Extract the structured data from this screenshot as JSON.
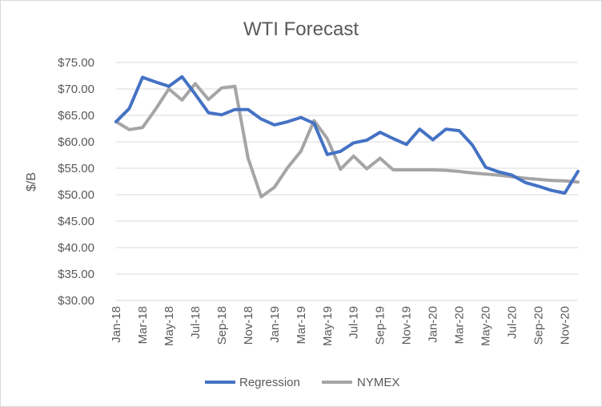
{
  "chart_data": {
    "type": "line",
    "title": "WTI Forecast",
    "xlabel": "",
    "ylabel": "$/B",
    "ylim": [
      30,
      75
    ],
    "yticks": [
      "$30.00",
      "$35.00",
      "$40.00",
      "$45.00",
      "$50.00",
      "$55.00",
      "$60.00",
      "$65.00",
      "$70.00",
      "$75.00"
    ],
    "x": [
      "Jan-18",
      "Feb-18",
      "Mar-18",
      "Apr-18",
      "May-18",
      "Jun-18",
      "Jul-18",
      "Aug-18",
      "Sep-18",
      "Oct-18",
      "Nov-18",
      "Dec-18",
      "Jan-19",
      "Feb-19",
      "Mar-19",
      "Apr-19",
      "May-19",
      "Jun-19",
      "Jul-19",
      "Aug-19",
      "Sep-19",
      "Oct-19",
      "Nov-19",
      "Dec-19",
      "Jan-20",
      "Feb-20",
      "Mar-20",
      "Apr-20",
      "May-20",
      "Jun-20",
      "Jul-20",
      "Aug-20",
      "Sep-20",
      "Oct-20",
      "Nov-20",
      "Dec-20"
    ],
    "xtick_labels": [
      "Jan-18",
      "Mar-18",
      "May-18",
      "Jul-18",
      "Sep-18",
      "Nov-18",
      "Jan-19",
      "Mar-19",
      "May-19",
      "Jul-19",
      "Sep-19",
      "Nov-19",
      "Jan-20",
      "Mar-20",
      "May-20",
      "Jul-20",
      "Sep-20",
      "Nov-20"
    ],
    "series": [
      {
        "name": "Regression",
        "color": "#4472C4",
        "values": [
          63.8,
          66.3,
          72.2,
          71.3,
          70.5,
          72.3,
          69.0,
          65.5,
          65.1,
          66.1,
          66.1,
          64.3,
          63.2,
          63.8,
          64.6,
          63.5,
          57.6,
          58.2,
          59.8,
          60.3,
          61.8,
          60.6,
          59.5,
          62.4,
          60.4,
          62.4,
          62.1,
          59.4,
          55.2,
          54.3,
          53.7,
          52.3,
          51.6,
          50.8,
          50.3,
          54.4
        ]
      },
      {
        "name": "NYMEX",
        "color": "#A5A5A5",
        "values": [
          63.8,
          62.3,
          62.7,
          66.2,
          70.0,
          67.9,
          71.0,
          68.0,
          70.2,
          70.5,
          56.9,
          49.6,
          51.4,
          55.1,
          58.2,
          64.0,
          60.6,
          54.8,
          57.3,
          54.9,
          56.9,
          54.7,
          54.7,
          54.7,
          54.7,
          54.6,
          54.4,
          54.1,
          53.9,
          53.7,
          53.4,
          53.1,
          52.9,
          52.7,
          52.6,
          52.4
        ]
      }
    ],
    "grid": true,
    "legend": "bottom",
    "gridline_color": "#d9d9d9"
  }
}
